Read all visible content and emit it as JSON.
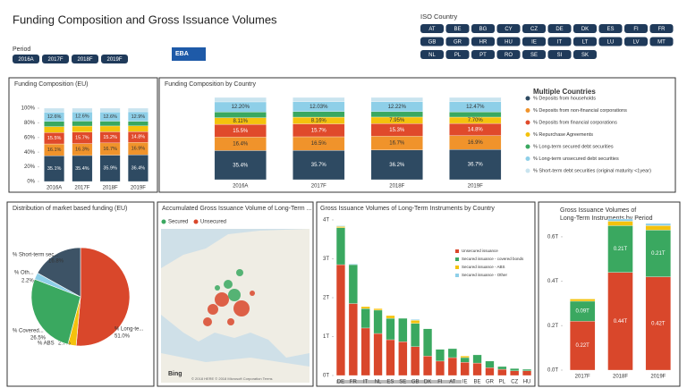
{
  "header": {
    "title": "Funding Composition and Gross Issuance Volumes",
    "logo": "EBA"
  },
  "period_filter": {
    "label": "Period",
    "options": [
      "2016A",
      "2017F",
      "2018F",
      "2019F"
    ]
  },
  "country_filter": {
    "label": "ISO Country",
    "options": [
      "AT",
      "BE",
      "BG",
      "CY",
      "CZ",
      "DE",
      "DK",
      "ES",
      "FI",
      "FR",
      "GB",
      "GR",
      "HR",
      "HU",
      "IE",
      "IT",
      "LT",
      "LU",
      "LV",
      "MT",
      "NL",
      "PL",
      "PT",
      "RO",
      "SE",
      "SI",
      "SK"
    ]
  },
  "chart_data": [
    {
      "type": "bar",
      "stacked": true,
      "title": "Funding Composition (EU)",
      "categories": [
        "2016A",
        "2017F",
        "2018F",
        "2019F"
      ],
      "ylim": [
        0,
        100
      ],
      "yticks": [
        {
          "value": 0,
          "label": "0%"
        },
        {
          "value": 20,
          "label": "20%"
        },
        {
          "value": 40,
          "label": "40%"
        },
        {
          "value": 60,
          "label": "60%"
        },
        {
          "value": 80,
          "label": "80%"
        },
        {
          "value": 100,
          "label": "100%"
        }
      ],
      "series": [
        {
          "color": "#2e4a62",
          "values": [
            35.1,
            35.4,
            35.9,
            36.4
          ],
          "value_labels": [
            "35.1%",
            "35.4%",
            "35.9%",
            "36.4%"
          ]
        },
        {
          "color": "#f0932b",
          "values": [
            16.1,
            16.3,
            16.7,
            16.9
          ],
          "value_labels": [
            "16.1%",
            "16.3%",
            "16.7%",
            "16.9%"
          ]
        },
        {
          "color": "#e04a2b",
          "values": [
            15.5,
            15.7,
            15.2,
            14.8
          ],
          "value_labels": [
            "15.5%",
            "15.7%",
            "15.2%",
            "14.8%"
          ]
        },
        {
          "color": "#f4c20d",
          "values": [
            8.2,
            8.2,
            7.9,
            7.7
          ]
        },
        {
          "color": "#3aa860",
          "values": [
            7.0,
            6.8,
            6.6,
            6.4
          ]
        },
        {
          "color": "#8ecfe8",
          "values": [
            12.6,
            12.6,
            12.6,
            12.9
          ],
          "value_labels": [
            "12.6%",
            "12.6%",
            "12.6%",
            "12.9%"
          ]
        },
        {
          "color": "#c9e4ef",
          "values": [
            5.5,
            5.0,
            5.1,
            4.9
          ]
        }
      ]
    },
    {
      "type": "bar",
      "stacked": true,
      "title": "Funding Composition by Country",
      "legend_title": "Multiple Countries",
      "categories": [
        "2016A",
        "2017F",
        "2018F",
        "2019F"
      ],
      "series": [
        {
          "name": "% Deposits from households",
          "color": "#2e4a62",
          "values": [
            35.4,
            35.7,
            36.2,
            36.7
          ],
          "value_labels": [
            "35.4%",
            "35.7%",
            "36.2%",
            "36.7%"
          ]
        },
        {
          "name": "% Deposits from non-financial corporations",
          "color": "#f0932b",
          "values": [
            16.4,
            16.5,
            16.7,
            16.9
          ],
          "value_labels": [
            "16.4%",
            "16.5%",
            "16.7%",
            "16.9%"
          ]
        },
        {
          "name": "% Deposits from financial corporations",
          "color": "#e04a2b",
          "values": [
            15.5,
            15.7,
            15.3,
            14.8
          ],
          "value_labels": [
            "15.5%",
            "15.7%",
            "15.3%",
            "14.8%"
          ]
        },
        {
          "name": "% Repurchase Agreements",
          "color": "#f4c20d",
          "values": [
            8.11,
            8.16,
            7.95,
            7.7
          ],
          "value_labels": [
            "8.11%",
            "8.16%",
            "7.95%",
            "7.70%"
          ]
        },
        {
          "name": "% Long-term secured debt securities",
          "color": "#3aa860",
          "values": [
            7.0,
            6.8,
            6.6,
            6.4
          ]
        },
        {
          "name": "% Long-term unsecured debt securities",
          "color": "#8ecfe8",
          "values": [
            12.2,
            12.03,
            12.22,
            12.47
          ],
          "value_labels": [
            "12.20%",
            "12.03%",
            "12.22%",
            "12.47%"
          ]
        },
        {
          "name": "% Short-term debt securities (original maturity <1year)",
          "color": "#c9e4ef",
          "values": [
            5.39,
            5.11,
            5.03,
            5.03
          ]
        }
      ]
    },
    {
      "type": "pie",
      "title": "Distribution of market based funding (EU)",
      "categories": [
        "% Long-te...",
        "% ABS",
        "% Covered...",
        "% Oth...",
        "% Short-term sec..."
      ],
      "values": [
        51.0,
        2.7,
        26.5,
        2.2,
        16.8
      ],
      "value_labels": [
        "51.0%",
        "2.7%",
        "26.5%",
        "2.2%",
        "16.8%"
      ],
      "colors": [
        "#d9472b",
        "#f4c20d",
        "#3aa860",
        "#8ecfe8",
        "#3d5366"
      ]
    },
    {
      "type": "map",
      "title": "Accumulated Gross Issuance Volume of Long-Term ...",
      "series": [
        {
          "name": "Secured",
          "color": "#3aa860"
        },
        {
          "name": "Unsecured",
          "color": "#d9472b"
        }
      ],
      "attribution": "Bing",
      "copyright": "© 2018 HERE © 2018 Microsoft Corporation Terms"
    },
    {
      "type": "bar",
      "stacked": true,
      "title": "Gross Issuance Volumes of Long-Term Instruments by Country",
      "categories": [
        "DE",
        "FR",
        "IT",
        "NL",
        "ES",
        "SE",
        "GB",
        "DK",
        "FI",
        "AT",
        "IE",
        "BE",
        "GR",
        "PL",
        "CZ",
        "HU"
      ],
      "ylim": [
        0,
        4
      ],
      "yticks": [
        {
          "value": 0,
          "label": "0T"
        },
        {
          "value": 1,
          "label": "1T"
        },
        {
          "value": 2,
          "label": "2T"
        },
        {
          "value": 3,
          "label": "3T"
        },
        {
          "value": 4,
          "label": "4T"
        }
      ],
      "series": [
        {
          "name": "Unsecured issuance",
          "color": "#d9472b",
          "values": [
            2.85,
            1.85,
            1.22,
            1.08,
            0.92,
            0.87,
            0.74,
            0.5,
            0.37,
            0.46,
            0.34,
            0.32,
            0.2,
            0.16,
            0.12,
            0.12
          ]
        },
        {
          "name": "Secured issuance - covered bonds",
          "color": "#3aa860",
          "values": [
            0.95,
            1.0,
            0.5,
            0.6,
            0.55,
            0.6,
            0.6,
            0.7,
            0.3,
            0.23,
            0.12,
            0.21,
            0.17,
            0.07,
            0.06,
            0.04
          ]
        },
        {
          "name": "Secured issuance - ABS",
          "color": "#f4c20d",
          "values": [
            0.03,
            0,
            0.05,
            0.04,
            0.07,
            0,
            0.08,
            0,
            0,
            0,
            0.04,
            0,
            0,
            0,
            0,
            0
          ]
        },
        {
          "name": "Secured issuance - Other",
          "color": "#8ecfe8",
          "values": [
            0.02,
            0.02,
            0,
            0,
            0,
            0,
            0.02,
            0,
            0,
            0,
            0,
            0,
            0,
            0,
            0,
            0
          ]
        }
      ]
    },
    {
      "type": "bar",
      "stacked": true,
      "title": [
        "Gross Issuance Volumes of",
        "Long-Term Instruments by Period"
      ],
      "categories": [
        "2017F",
        "2018F",
        "2019F"
      ],
      "ylim": [
        0,
        0.7
      ],
      "yticks": [
        {
          "value": 0,
          "label": "0.0T"
        },
        {
          "value": 0.2,
          "label": "0.2T"
        },
        {
          "value": 0.4,
          "label": "0.4T"
        },
        {
          "value": 0.6,
          "label": "0.6T"
        }
      ],
      "series": [
        {
          "color": "#d9472b",
          "values": [
            0.22,
            0.44,
            0.42
          ],
          "value_labels": [
            "0.22T",
            "0.44T",
            "0.42T"
          ]
        },
        {
          "color": "#3aa860",
          "values": [
            0.09,
            0.21,
            0.21
          ],
          "value_labels": [
            "0.09T",
            "0.21T",
            "0.21T"
          ]
        },
        {
          "color": "#f4c20d",
          "values": [
            0.01,
            0.02,
            0.02
          ]
        },
        {
          "color": "#8ecfe8",
          "values": [
            0,
            0.01,
            0.01
          ]
        }
      ]
    }
  ]
}
